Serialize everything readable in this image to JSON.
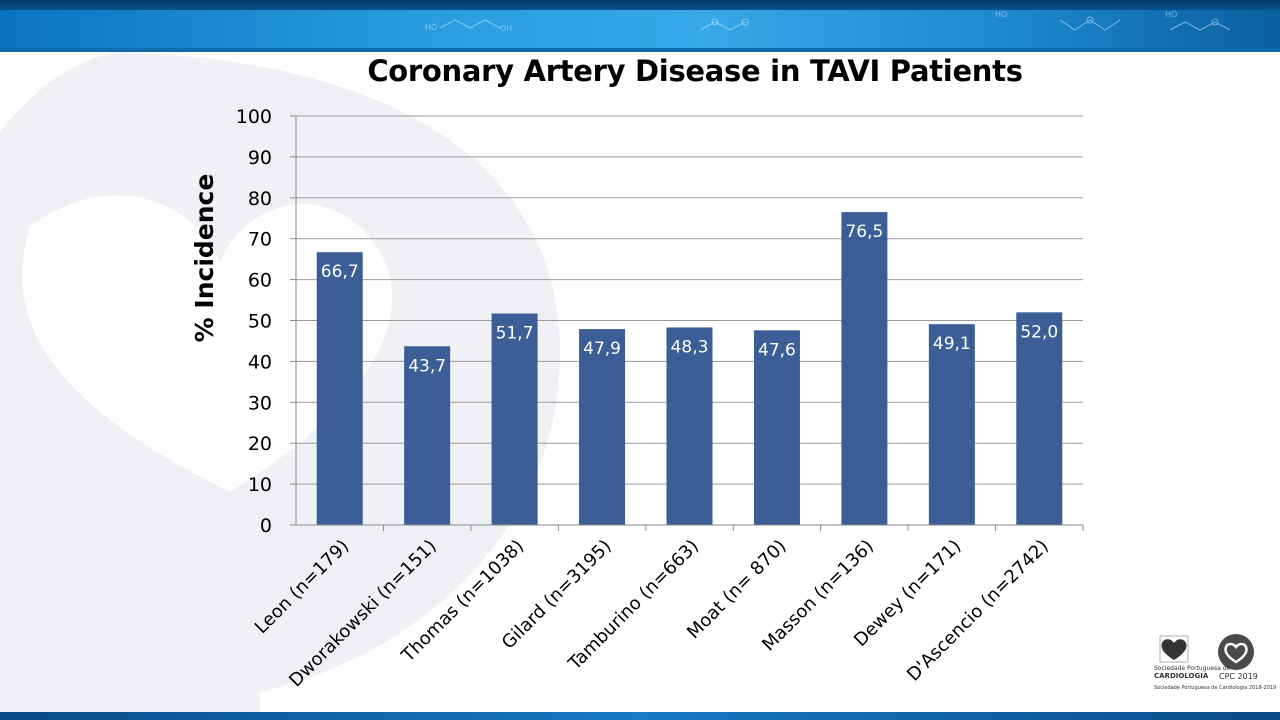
{
  "chart_data": {
    "type": "bar",
    "title": "Coronary Artery Disease in TAVI Patients",
    "ylabel": "% Incidence",
    "xlabel": "",
    "ylim": [
      0,
      100
    ],
    "yticks": [
      0,
      10,
      20,
      30,
      40,
      50,
      60,
      70,
      80,
      90,
      100
    ],
    "grid": true,
    "categories": [
      "Leon (n=179)",
      "Dworakowski (n=151)",
      "Thomas (n=1038)",
      "Gilard (n=3195)",
      "Tamburino (n=663)",
      "Moat (n= 870)",
      "Masson (n=136)",
      "Dewey (n=171)",
      "D'Ascencio (n=2742)"
    ],
    "values": [
      66.7,
      43.7,
      51.7,
      47.9,
      48.3,
      47.6,
      76.5,
      49.1,
      52.0
    ],
    "data_labels": [
      "66,7",
      "43,7",
      "51,7",
      "47,9",
      "48,3",
      "47,6",
      "76,5",
      "49,1",
      "52,0"
    ],
    "bar_color": "#3a5e95",
    "label_color": "#ffffff"
  },
  "logos": {
    "society_line1": "Sociedade Portuguesa de",
    "society_line2": "CARDIOLOGIA",
    "footer_note": "Sociedade Portuguesa de Cardiologia 2018-2019",
    "congress": "CPC 2019"
  },
  "colors": {
    "banner": "#1b8fd0",
    "bottom_bar": "#1679c2"
  }
}
